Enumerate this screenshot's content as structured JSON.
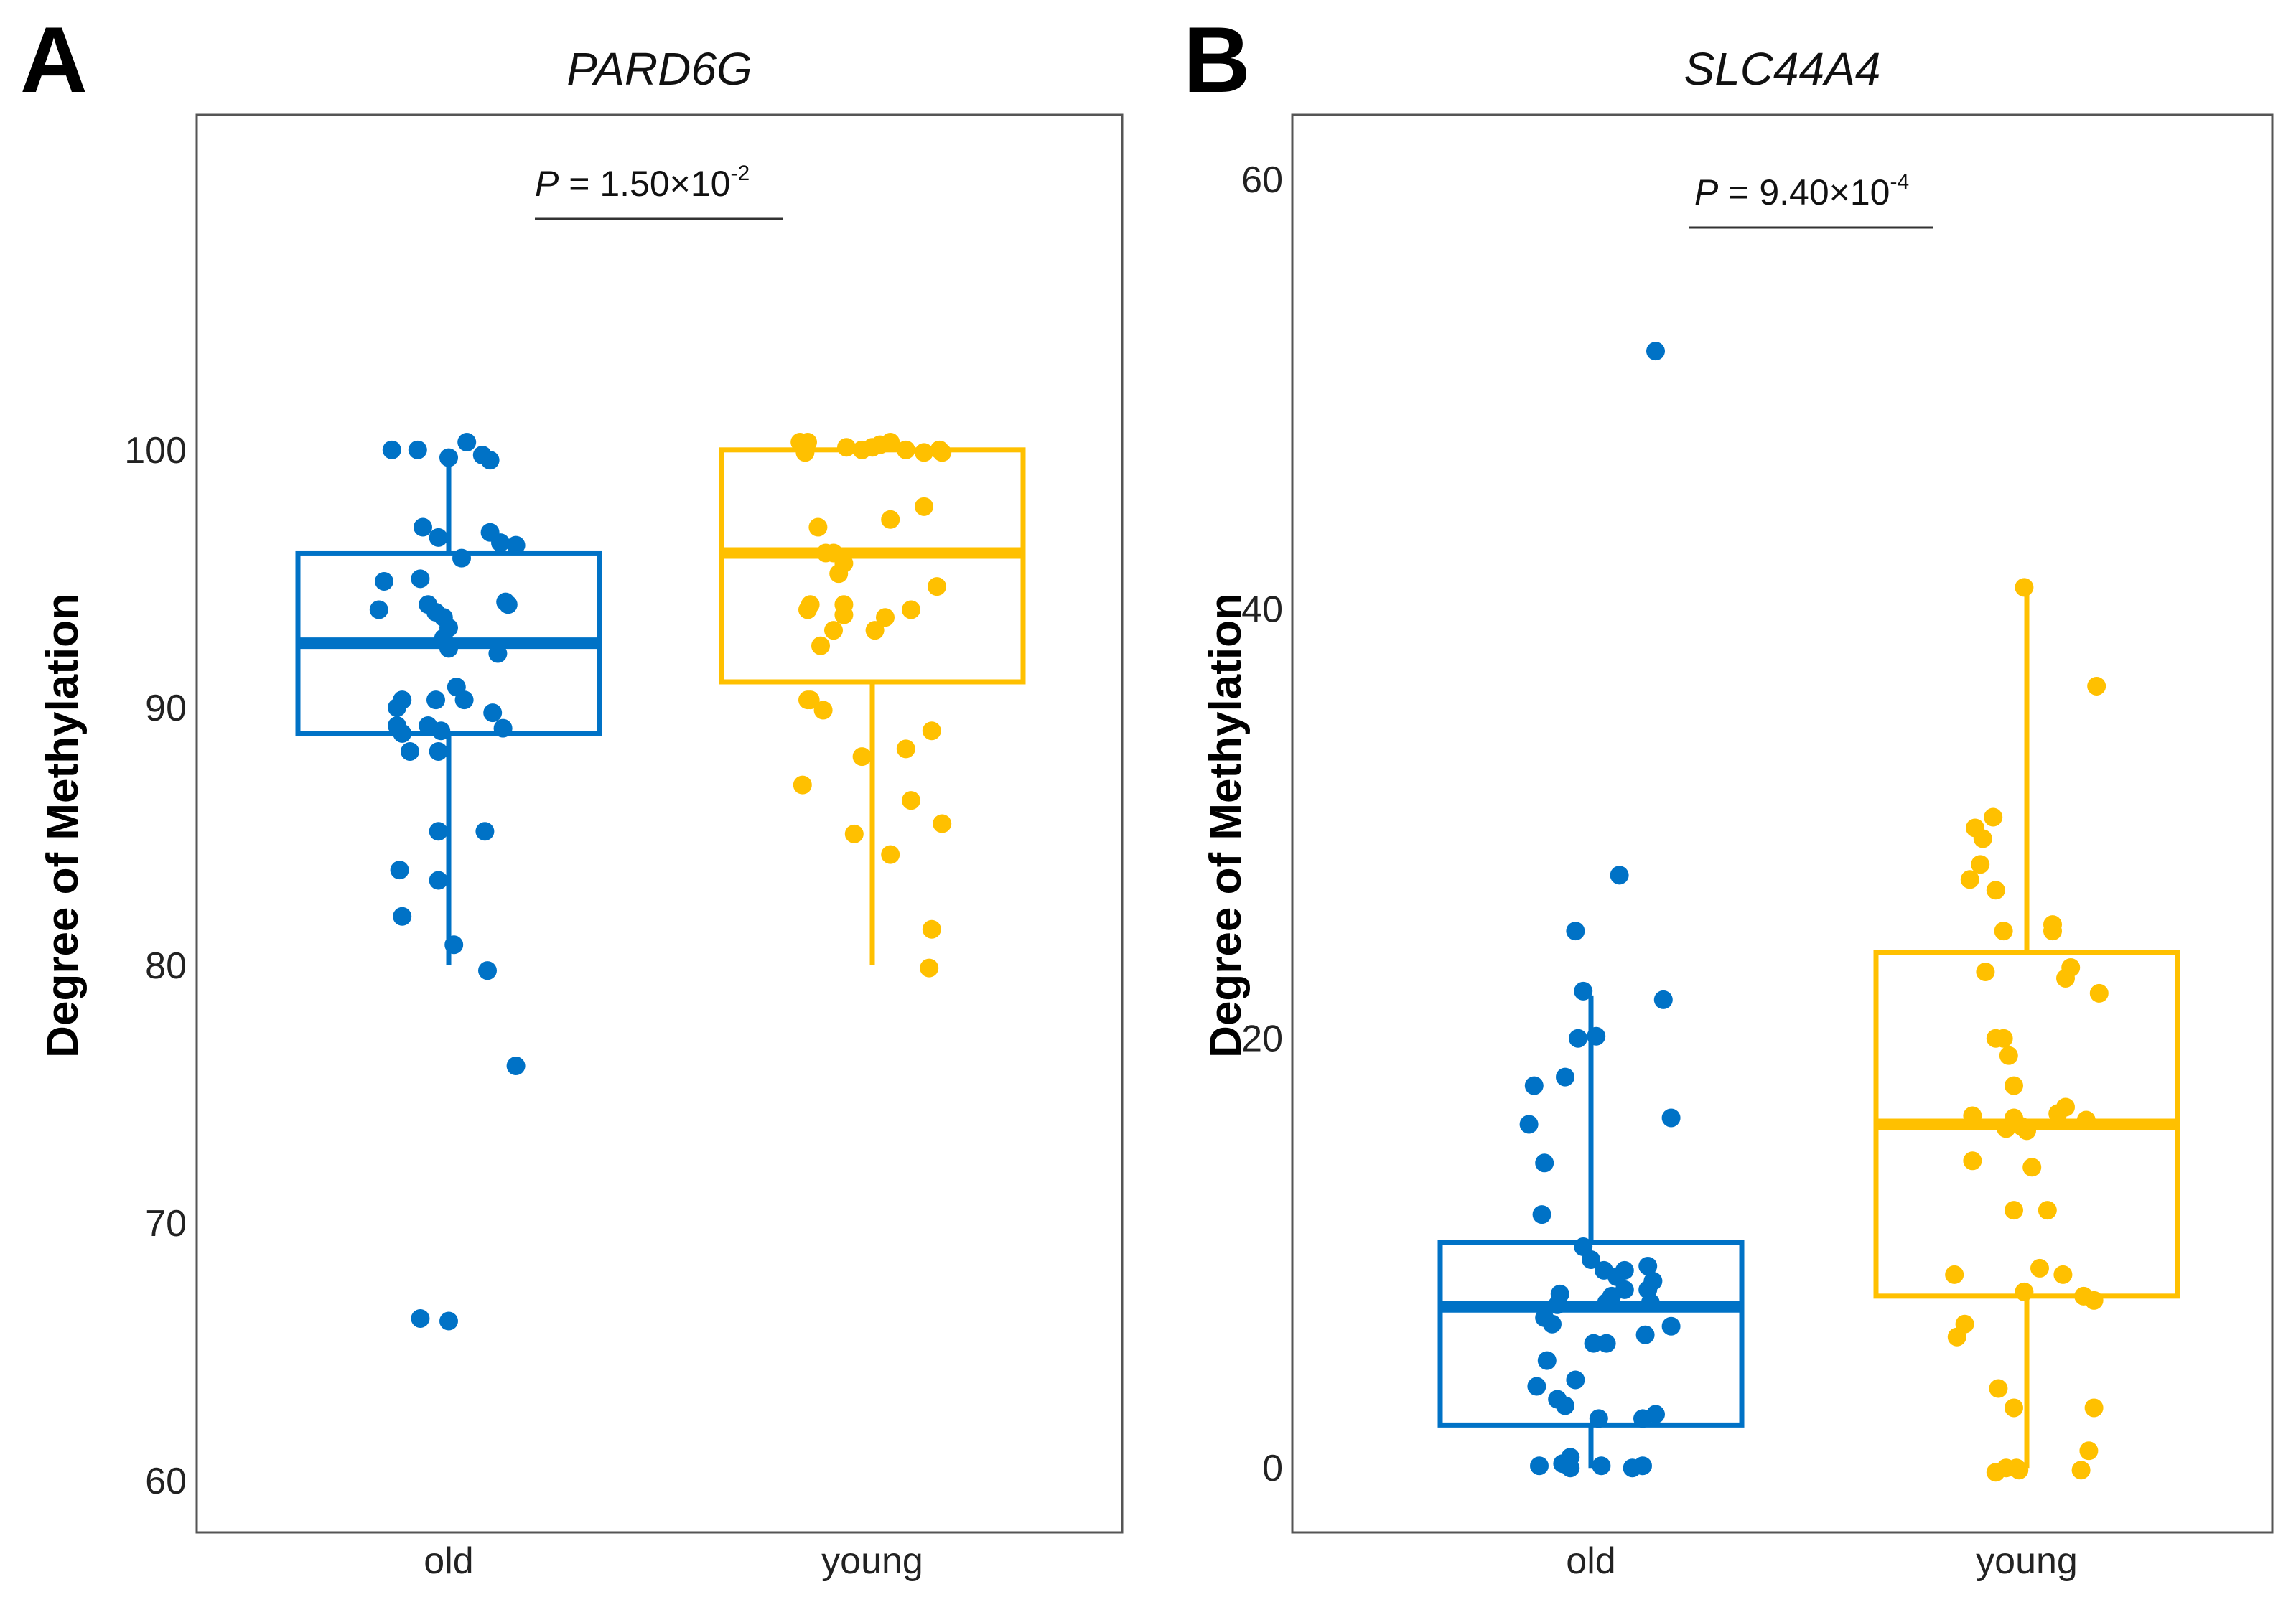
{
  "chart_data": [
    {
      "panel": "A",
      "type": "boxplot",
      "title": "PARD6G",
      "ylabel": "Degree of Methylation",
      "ylim": [
        58,
        113
      ],
      "yticks": [
        60,
        70,
        80,
        90,
        100
      ],
      "categories": [
        "old",
        "young"
      ],
      "colors": [
        "#0072c6",
        "#ffc000"
      ],
      "pvalue": {
        "prefix": "P",
        "text": " = 1.50×10",
        "exp": "-2"
      },
      "boxes": [
        {
          "name": "old",
          "q1": 89.0,
          "median": 92.5,
          "q3": 96.0,
          "whisker_low": 80.0,
          "whisker_high": 100.0
        },
        {
          "name": "young",
          "q1": 91.0,
          "median": 96.0,
          "q3": 100.0,
          "whisker_low": 80.0,
          "whisker_high": 100.0
        }
      ],
      "points": [
        [
          [
            -0.22,
            100
          ],
          [
            -0.12,
            100
          ],
          [
            0.0,
            99.7
          ],
          [
            0.07,
            100.3
          ],
          [
            0.13,
            99.8
          ],
          [
            0.16,
            99.6
          ],
          [
            -0.1,
            97
          ],
          [
            -0.04,
            96.6
          ],
          [
            0.16,
            96.8
          ],
          [
            0.2,
            96.4
          ],
          [
            0.26,
            96.3
          ],
          [
            0.05,
            95.8
          ],
          [
            -0.25,
            94.9
          ],
          [
            -0.11,
            95
          ],
          [
            0.22,
            94.1
          ],
          [
            0.23,
            94.0
          ],
          [
            -0.27,
            93.8
          ],
          [
            -0.08,
            94
          ],
          [
            -0.05,
            93.7
          ],
          [
            -0.02,
            93.5
          ],
          [
            0.0,
            93.1
          ],
          [
            -0.02,
            92.7
          ],
          [
            0.0,
            92.3
          ],
          [
            0.19,
            92.1
          ],
          [
            0.03,
            90.8
          ],
          [
            0.06,
            90.3
          ],
          [
            -0.18,
            90.3
          ],
          [
            -0.2,
            90.0
          ],
          [
            -0.05,
            90.3
          ],
          [
            0.17,
            89.8
          ],
          [
            -0.2,
            89.3
          ],
          [
            -0.18,
            89.0
          ],
          [
            -0.08,
            89.3
          ],
          [
            -0.03,
            89.1
          ],
          [
            0.21,
            89.2
          ],
          [
            -0.15,
            88.3
          ],
          [
            -0.04,
            88.3
          ],
          [
            -0.04,
            85.2
          ],
          [
            0.14,
            85.2
          ],
          [
            -0.19,
            83.7
          ],
          [
            -0.04,
            83.3
          ],
          [
            -0.18,
            81.9
          ],
          [
            0.02,
            80.8
          ],
          [
            0.15,
            79.8
          ],
          [
            0.26,
            76.1
          ],
          [
            -0.11,
            66.3
          ],
          [
            0.0,
            66.2
          ]
        ],
        [
          [
            -0.28,
            100.3
          ],
          [
            -0.25,
            100.3
          ],
          [
            -0.26,
            99.9
          ],
          [
            -0.1,
            100.1
          ],
          [
            -0.04,
            100.0
          ],
          [
            0.0,
            100.1
          ],
          [
            0.03,
            100.2
          ],
          [
            0.07,
            100.3
          ],
          [
            0.13,
            100.0
          ],
          [
            0.2,
            99.9
          ],
          [
            0.26,
            100.0
          ],
          [
            0.27,
            99.9
          ],
          [
            -0.21,
            97.0
          ],
          [
            0.07,
            97.3
          ],
          [
            0.2,
            97.8
          ],
          [
            -0.18,
            96.0
          ],
          [
            -0.15,
            96.0
          ],
          [
            -0.11,
            95.6
          ],
          [
            -0.13,
            95.2
          ],
          [
            0.25,
            94.7
          ],
          [
            -0.24,
            94.0
          ],
          [
            -0.11,
            94.0
          ],
          [
            -0.11,
            93.6
          ],
          [
            0.15,
            93.8
          ],
          [
            -0.25,
            93.8
          ],
          [
            0.05,
            93.5
          ],
          [
            -0.15,
            93.0
          ],
          [
            0.01,
            93.0
          ],
          [
            -0.2,
            92.4
          ],
          [
            -0.24,
            90.3
          ],
          [
            -0.19,
            89.9
          ],
          [
            -0.25,
            90.3
          ],
          [
            0.23,
            89.1
          ],
          [
            -0.04,
            88.1
          ],
          [
            0.13,
            88.4
          ],
          [
            -0.27,
            87.0
          ],
          [
            0.15,
            86.4
          ],
          [
            0.27,
            85.5
          ],
          [
            -0.07,
            85.1
          ],
          [
            0.07,
            84.3
          ],
          [
            0.23,
            81.4
          ],
          [
            0.22,
            79.9
          ]
        ]
      ]
    },
    {
      "panel": "B",
      "type": "boxplot",
      "title": "SLC44A4",
      "ylabel": "Degree of Methylation",
      "ylim": [
        -3,
        63
      ],
      "yticks": [
        0,
        20,
        40,
        60
      ],
      "categories": [
        "old",
        "young"
      ],
      "colors": [
        "#0072c6",
        "#ffc000"
      ],
      "pvalue": {
        "prefix": "P",
        "text": " = 9.40×10",
        "exp": "-4"
      },
      "boxes": [
        {
          "name": "old",
          "q1": 2.0,
          "median": 7.5,
          "q3": 10.5,
          "whisker_low": 0.0,
          "whisker_high": 22.0
        },
        {
          "name": "young",
          "q1": 8.0,
          "median": 16.0,
          "q3": 24.0,
          "whisker_low": 0.0,
          "whisker_high": 41.0
        }
      ],
      "points": [
        [
          [
            0.25,
            52.0
          ],
          [
            0.11,
            27.6
          ],
          [
            -0.06,
            25.0
          ],
          [
            -0.03,
            22.2
          ],
          [
            0.28,
            21.8
          ],
          [
            -0.05,
            20.0
          ],
          [
            0.02,
            20.1
          ],
          [
            -0.22,
            17.8
          ],
          [
            -0.1,
            18.2
          ],
          [
            -0.24,
            16.0
          ],
          [
            0.31,
            16.3
          ],
          [
            -0.18,
            14.2
          ],
          [
            -0.19,
            11.8
          ],
          [
            -0.03,
            10.3
          ],
          [
            0.0,
            9.7
          ],
          [
            0.22,
            9.4
          ],
          [
            0.05,
            9.2
          ],
          [
            0.24,
            8.7
          ],
          [
            0.1,
            8.9
          ],
          [
            0.13,
            9.2
          ],
          [
            -0.12,
            8.1
          ],
          [
            0.08,
            8.0
          ],
          [
            0.22,
            8.3
          ],
          [
            0.13,
            8.3
          ],
          [
            -0.13,
            7.6
          ],
          [
            0.06,
            7.7
          ],
          [
            -0.18,
            7.0
          ],
          [
            0.23,
            7.7
          ],
          [
            0.31,
            6.6
          ],
          [
            0.21,
            6.2
          ],
          [
            -0.15,
            6.7
          ],
          [
            0.01,
            5.8
          ],
          [
            0.06,
            5.8
          ],
          [
            -0.17,
            5.0
          ],
          [
            -0.06,
            4.1
          ],
          [
            -0.21,
            3.8
          ],
          [
            -0.13,
            3.2
          ],
          [
            -0.1,
            2.9
          ],
          [
            0.03,
            2.3
          ],
          [
            0.2,
            2.3
          ],
          [
            0.25,
            2.5
          ],
          [
            -0.2,
            0.1
          ],
          [
            -0.11,
            0.2
          ],
          [
            -0.08,
            0.5
          ],
          [
            0.04,
            0.1
          ],
          [
            0.16,
            0.0
          ],
          [
            0.2,
            0.1
          ],
          [
            -0.08,
            0.0
          ]
        ],
        [
          [
            -0.01,
            41.0
          ],
          [
            0.27,
            36.4
          ],
          [
            -0.13,
            30.3
          ],
          [
            -0.2,
            29.8
          ],
          [
            -0.17,
            29.3
          ],
          [
            -0.18,
            28.1
          ],
          [
            -0.22,
            27.4
          ],
          [
            -0.12,
            26.9
          ],
          [
            -0.09,
            25.0
          ],
          [
            0.1,
            25.0
          ],
          [
            0.1,
            25.3
          ],
          [
            -0.16,
            23.1
          ],
          [
            0.17,
            23.3
          ],
          [
            0.15,
            22.8
          ],
          [
            0.28,
            22.1
          ],
          [
            -0.12,
            20.0
          ],
          [
            -0.09,
            20.0
          ],
          [
            -0.07,
            19.2
          ],
          [
            -0.05,
            17.8
          ],
          [
            0.15,
            16.8
          ],
          [
            -0.05,
            16.3
          ],
          [
            -0.21,
            16.4
          ],
          [
            -0.08,
            15.8
          ],
          [
            0.23,
            16.2
          ],
          [
            -0.02,
            15.9
          ],
          [
            0.0,
            15.7
          ],
          [
            0.12,
            16.5
          ],
          [
            -0.21,
            14.3
          ],
          [
            0.02,
            14.0
          ],
          [
            -0.05,
            12.0
          ],
          [
            0.08,
            12.0
          ],
          [
            -0.28,
            9.0
          ],
          [
            0.05,
            9.3
          ],
          [
            0.14,
            9.0
          ],
          [
            -0.01,
            8.2
          ],
          [
            0.22,
            8.0
          ],
          [
            0.26,
            7.8
          ],
          [
            -0.24,
            6.7
          ],
          [
            -0.27,
            6.1
          ],
          [
            -0.11,
            3.7
          ],
          [
            -0.05,
            2.8
          ],
          [
            0.26,
            2.8
          ],
          [
            0.24,
            0.8
          ],
          [
            -0.04,
            0.0
          ],
          [
            -0.08,
            0.0
          ],
          [
            -0.03,
            -0.1
          ],
          [
            -0.12,
            -0.2
          ],
          [
            0.21,
            -0.1
          ]
        ]
      ]
    }
  ]
}
